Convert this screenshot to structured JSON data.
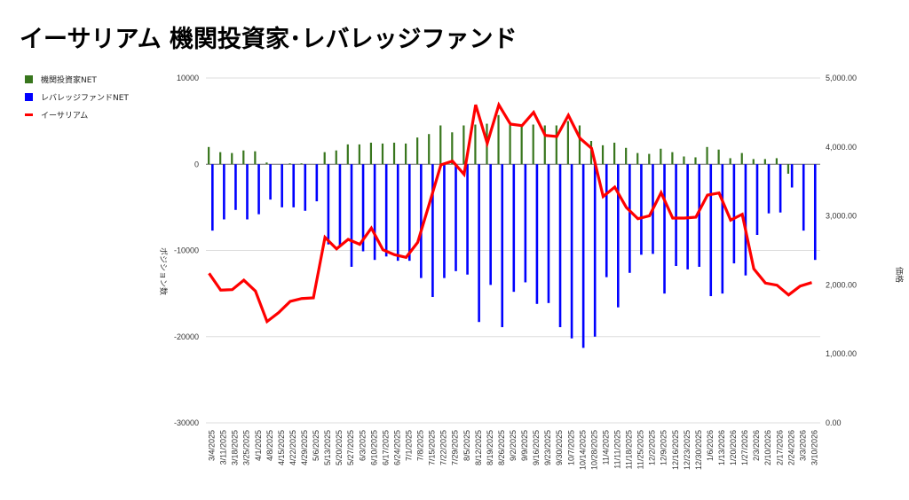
{
  "title": "イーサリアム  機関投資家･レバレッジファンド",
  "chart_data": {
    "type": "bar+line",
    "title": "イーサリアム  機関投資家･レバレッジファンド",
    "ylabel_left": "ポジション数",
    "ylabel_right": "価格",
    "ylim_left": [
      -30000,
      10000
    ],
    "ylim_right": [
      0,
      5000
    ],
    "left_ticks": [
      "10000",
      "0",
      "-10000",
      "-20000",
      "-30000"
    ],
    "left_tick_values": [
      10000,
      0,
      -10000,
      -20000,
      -30000
    ],
    "right_ticks": [
      "5,000.00",
      "4,000.00",
      "3,000.00",
      "2,000.00",
      "1,000.00",
      "0.00"
    ],
    "right_tick_values": [
      5000,
      4000,
      3000,
      2000,
      1000,
      0
    ],
    "grid": true,
    "legend_position": "top-left",
    "categories": [
      "3/4/2025",
      "3/11/2025",
      "3/18/2025",
      "3/25/2025",
      "4/1/2025",
      "4/8/2025",
      "4/15/2025",
      "4/22/2025",
      "4/29/2025",
      "5/6/2025",
      "5/13/2025",
      "5/20/2025",
      "5/27/2025",
      "6/3/2025",
      "6/10/2025",
      "6/17/2025",
      "6/24/2025",
      "7/1/2025",
      "7/8/2025",
      "7/15/2025",
      "7/22/2025",
      "7/29/2025",
      "8/5/2025",
      "8/12/2025",
      "8/19/2025",
      "8/26/2025",
      "9/2/2025",
      "9/9/2025",
      "9/16/2025",
      "9/23/2025",
      "9/30/2025",
      "10/7/2025",
      "10/14/2025",
      "10/28/2025",
      "11/4/2025",
      "11/11/2025",
      "11/18/2025",
      "11/25/2025",
      "12/2/2025",
      "12/9/2025",
      "12/16/2025",
      "12/23/2025",
      "12/30/2025",
      "1/6/2026",
      "1/13/2026",
      "1/20/2026",
      "1/27/2026",
      "2/3/2026",
      "2/10/2026",
      "2/17/2026",
      "2/24/2026",
      "3/3/2026",
      "3/10/2026"
    ],
    "series": [
      {
        "name": "機関投資家NET",
        "type": "bar",
        "axis": "left",
        "color": "#38761d",
        "values": [
          2000,
          1400,
          1300,
          1600,
          1500,
          200,
          0,
          100,
          100,
          0,
          1400,
          1600,
          2300,
          2300,
          2500,
          2400,
          2500,
          2400,
          3100,
          3500,
          4500,
          3700,
          4500,
          4600,
          4700,
          5700,
          4700,
          4500,
          4600,
          4500,
          4500,
          5000,
          4500,
          2700,
          2200,
          2500,
          1900,
          1300,
          1200,
          1800,
          1400,
          900,
          800,
          2000,
          1700,
          700,
          1300,
          600,
          600,
          700,
          -1100,
          0,
          0
        ]
      },
      {
        "name": "レバレッジファンドNET",
        "type": "bar",
        "axis": "left",
        "color": "#0000ff",
        "values": [
          -7700,
          -6400,
          -5300,
          -6400,
          -5800,
          -4100,
          -5000,
          -5000,
          -5400,
          -4300,
          -9300,
          -9400,
          -11900,
          -10100,
          -11100,
          -10700,
          -11200,
          -11200,
          -13200,
          -15400,
          -13200,
          -12400,
          -12800,
          -18300,
          -14000,
          -18900,
          -14800,
          -13700,
          -16200,
          -16100,
          -18900,
          -20200,
          -21300,
          -20000,
          -13100,
          -16600,
          -12600,
          -10500,
          -10400,
          -15000,
          -11800,
          -12200,
          -11900,
          -15300,
          -15000,
          -11500,
          -12900,
          -8200,
          -5700,
          -5600,
          -2700,
          -7700,
          -11100
        ]
      },
      {
        "name": "イーサリアム",
        "type": "line",
        "axis": "right",
        "color": "#ff0000",
        "values": [
          2168,
          1925,
          1932,
          2069,
          1911,
          1469,
          1598,
          1761,
          1803,
          1812,
          2690,
          2523,
          2661,
          2588,
          2824,
          2510,
          2438,
          2400,
          2618,
          3175,
          3740,
          3796,
          3603,
          4611,
          4053,
          4611,
          4332,
          4310,
          4503,
          4168,
          4152,
          4460,
          4126,
          3981,
          3282,
          3419,
          3123,
          2960,
          3003,
          3338,
          2969,
          2969,
          2982,
          3303,
          3333,
          2940,
          3024,
          2233,
          2027,
          1996,
          1855,
          1983,
          2035
        ]
      }
    ]
  }
}
